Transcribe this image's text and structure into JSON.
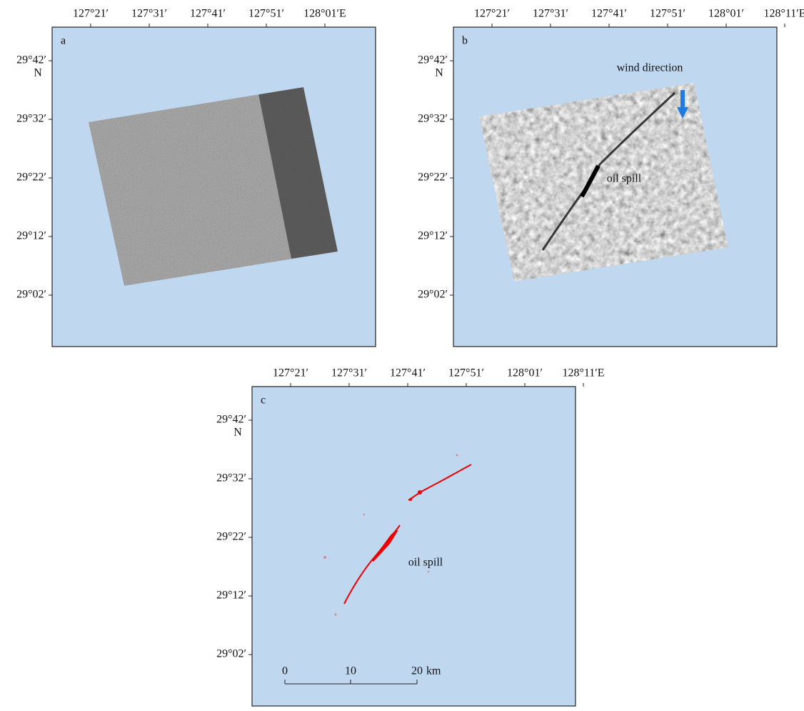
{
  "panels": [
    {
      "label": "a",
      "x_ticks": [
        "127°21′",
        "127°31′",
        "127°41′",
        "127°51′",
        "128°01′E"
      ],
      "y_ticks": [
        "29°42′",
        "29°32′",
        "29°22′",
        "29°12′",
        "29°02′"
      ],
      "lat_unit": "N"
    },
    {
      "label": "b",
      "x_ticks": [
        "127°21′",
        "127°31′",
        "127°41′",
        "127°51′",
        "128°01′",
        "128°11′E"
      ],
      "y_ticks": [
        "29°42′",
        "29°32′",
        "29°22′",
        "29°12′",
        "29°02′"
      ],
      "lat_unit": "N",
      "annotations": {
        "wind": "wind direction",
        "spill": "oil spill"
      }
    },
    {
      "label": "c",
      "x_ticks": [
        "127°21′",
        "127°31′",
        "127°41′",
        "127°51′",
        "128°01′",
        "128°11′E"
      ],
      "y_ticks": [
        "29°42′",
        "29°32′",
        "29°22′",
        "29°12′",
        "29°02′"
      ],
      "lat_unit": "N",
      "annotations": {
        "spill": "oil spill"
      },
      "scale_bar": {
        "labels": [
          "0",
          "10",
          "20"
        ],
        "unit": "km"
      }
    }
  ]
}
